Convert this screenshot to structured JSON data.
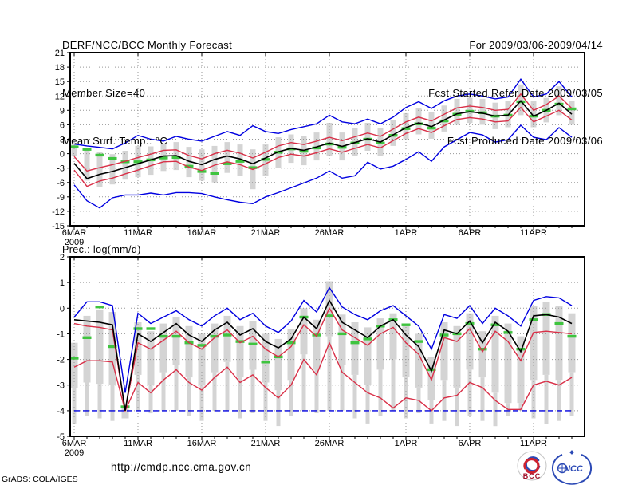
{
  "header": {
    "title": "DERF/NCC/BCC Monthly Forecast",
    "member_size": "Member Size=40",
    "temp_label": "Mean Surf. Temp.: °C",
    "for_range": "For 2009/03/06-2009/04/14",
    "refer_date": "Fcst Started Refer Date 2009/03/05",
    "produced_date": "Fcst Produced Date 2009/03/06"
  },
  "footer": {
    "url": "http://cmdp.ncc.cma.gov.cn",
    "grads_credit": "GrADS: COLA/IGES",
    "logo_bcc_label": "BCC",
    "logo_ncc_label": "NCC"
  },
  "colors": {
    "line_blue": "#0000e0",
    "line_red": "#d93048",
    "line_black": "#000000",
    "obs_green": "#3fc43f",
    "spread_gray": "#d4d4d4",
    "grid_gray": "#979797",
    "logo_red": "#cc2230",
    "logo_blue": "#2b49b5"
  },
  "chart_data": [
    {
      "id": "temp",
      "type": "line",
      "title": "Mean Surf. Temp.: °C",
      "x_range_dates": "2009/03/06 - 2009/04/14",
      "n_days": 40,
      "x_tick_labels": [
        "6MAR",
        "11MAR",
        "16MAR",
        "21MAR",
        "26MAR",
        "1APR",
        "6APR",
        "11APR"
      ],
      "x_tick_days": [
        0,
        5,
        10,
        15,
        20,
        26,
        31,
        36
      ],
      "x_first_sub_label": "2009",
      "ylim": [
        -15,
        21
      ],
      "ytick_values": [
        21,
        18,
        15,
        12,
        9,
        6,
        3,
        0,
        -3,
        -6,
        -9,
        -12,
        -15
      ],
      "ytick_labels": [
        "21",
        "18",
        "15",
        "12",
        "9",
        "6",
        "3",
        "0",
        "-3",
        "-6",
        "-9",
        "-12",
        "-15"
      ],
      "grid": true,
      "series": [
        {
          "name": "ensemble-max",
          "color_key": "line_blue",
          "style": "solid",
          "values": [
            2.0,
            1.6,
            1.3,
            1.0,
            2.2,
            3.8,
            3.0,
            2.6,
            3.6,
            3.0,
            2.6,
            3.6,
            4.6,
            3.8,
            5.8,
            4.6,
            4.2,
            5.0,
            5.6,
            6.2,
            8.0,
            6.6,
            6.2,
            7.2,
            6.2,
            7.6,
            9.6,
            10.8,
            9.4,
            11.0,
            12.0,
            12.4,
            12.0,
            11.4,
            11.8,
            15.5,
            11.8,
            12.4,
            15.0,
            11.8
          ]
        },
        {
          "name": "upper-quartile",
          "color_key": "line_red",
          "style": "solid",
          "values": [
            -0.6,
            -3.6,
            -2.9,
            -2.3,
            -1.6,
            -0.8,
            -0.1,
            0.7,
            0.8,
            -0.4,
            -1.1,
            0.0,
            0.7,
            0.1,
            -0.9,
            0.3,
            1.6,
            2.3,
            1.9,
            2.6,
            3.4,
            2.7,
            3.5,
            4.3,
            3.6,
            5.1,
            6.6,
            7.6,
            6.8,
            8.2,
            9.5,
            9.9,
            9.6,
            9.0,
            9.2,
            12.4,
            9.0,
            10.2,
            12.0,
            9.4
          ]
        },
        {
          "name": "lower-quartile",
          "color_key": "line_red",
          "style": "solid",
          "values": [
            -3.4,
            -6.8,
            -5.7,
            -5.1,
            -4.2,
            -3.4,
            -2.5,
            -1.7,
            -1.6,
            -2.8,
            -3.5,
            -2.4,
            -1.7,
            -2.3,
            -3.3,
            -2.1,
            -0.8,
            -0.1,
            -0.5,
            0.2,
            1.0,
            0.3,
            1.1,
            1.9,
            1.2,
            2.7,
            4.2,
            5.2,
            4.4,
            5.8,
            7.1,
            7.5,
            7.2,
            6.6,
            6.8,
            9.6,
            6.6,
            7.8,
            9.0,
            7.0
          ]
        },
        {
          "name": "ensemble-min",
          "color_key": "line_blue",
          "style": "solid",
          "values": [
            -6.5,
            -9.8,
            -11.3,
            -9.2,
            -8.6,
            -8.6,
            -8.2,
            -8.6,
            -8.1,
            -8.1,
            -8.3,
            -9.0,
            -9.6,
            -10.1,
            -10.4,
            -9.0,
            -8.1,
            -7.1,
            -6.1,
            -5.1,
            -3.6,
            -5.1,
            -4.6,
            -1.8,
            -3.2,
            -2.6,
            -1.2,
            0.4,
            -1.6,
            1.4,
            2.9,
            4.4,
            3.9,
            2.4,
            2.9,
            5.9,
            3.4,
            2.9,
            5.4,
            3.4
          ]
        },
        {
          "name": "ensemble-mean",
          "color_key": "line_black",
          "style": "solid",
          "values": [
            -2.0,
            -5.2,
            -4.3,
            -3.7,
            -2.9,
            -2.1,
            -1.3,
            -0.5,
            -0.4,
            -1.6,
            -2.3,
            -1.2,
            -0.5,
            -1.1,
            -2.1,
            -0.9,
            0.4,
            1.1,
            0.7,
            1.4,
            2.2,
            1.5,
            2.3,
            3.1,
            2.4,
            3.9,
            5.4,
            6.4,
            5.6,
            7.0,
            8.3,
            8.7,
            8.4,
            7.8,
            8.0,
            11.0,
            7.8,
            9.0,
            10.5,
            8.2
          ]
        }
      ],
      "observation": {
        "name": "observation-dashes",
        "color_key": "obs_green",
        "values": [
          1.4,
          0.9,
          -0.3,
          -1.0,
          -1.7,
          -1.7,
          -1.3,
          -0.9,
          -0.8,
          -2.6,
          -3.7,
          -4.1,
          -2.1,
          -1.6,
          -2.9,
          -1.2,
          0.3,
          1.0,
          0.5,
          1.2,
          2.0,
          1.3,
          2.2,
          3.0,
          2.2,
          3.8,
          5.2,
          6.2,
          5.3,
          6.8,
          8.2,
          8.8,
          8.5,
          7.8,
          8.0,
          10.8,
          7.8,
          9.0,
          10.3,
          9.3
        ]
      },
      "spread_bars": {
        "box_top": [
          2.2,
          0.9,
          0.4,
          -0.1,
          0.6,
          1.6,
          1.5,
          2.0,
          2.4,
          1.4,
          0.9,
          1.6,
          2.4,
          1.9,
          0.9,
          1.9,
          3.4,
          4.0,
          3.6,
          4.4,
          6.4,
          4.4,
          5.4,
          6.4,
          5.4,
          7.0,
          8.4,
          9.4,
          8.6,
          10.0,
          11.4,
          11.6,
          11.4,
          10.6,
          11.0,
          14.4,
          11.0,
          11.6,
          14.0,
          11.0
        ],
        "box_bottom": [
          -0.4,
          -5.6,
          -7.0,
          -6.4,
          -5.4,
          -4.9,
          -4.4,
          -3.6,
          -3.4,
          -4.9,
          -5.6,
          -6.0,
          -4.0,
          -4.6,
          -7.4,
          -4.6,
          -2.9,
          -1.9,
          -2.4,
          -1.4,
          -0.4,
          -1.4,
          -0.4,
          0.6,
          -0.4,
          1.6,
          3.0,
          4.0,
          3.1,
          4.6,
          6.0,
          6.4,
          6.0,
          5.1,
          5.5,
          8.0,
          5.5,
          6.5,
          8.0,
          6.0
        ],
        "stem_bottom": null
      }
    },
    {
      "id": "prec",
      "type": "line",
      "title": "Prec.: log(mm/d)",
      "x_range_dates": "2009/03/06 - 2009/04/14",
      "n_days": 40,
      "x_tick_labels": [
        "6MAR",
        "11MAR",
        "16MAR",
        "21MAR",
        "26MAR",
        "1APR",
        "6APR",
        "11APR"
      ],
      "x_tick_days": [
        0,
        5,
        10,
        15,
        20,
        26,
        31,
        36
      ],
      "x_first_sub_label": "2009",
      "ylim": [
        -5,
        2
      ],
      "ytick_values": [
        2,
        1,
        0,
        -1,
        -2,
        -3,
        -4,
        -5
      ],
      "ytick_labels": [
        "2",
        "1",
        "0",
        "-1",
        "-2",
        "-3",
        "-4",
        "-5"
      ],
      "grid": true,
      "series": [
        {
          "name": "ensemble-max",
          "color_key": "line_blue",
          "style": "solid",
          "values": [
            -0.35,
            0.25,
            0.25,
            0.1,
            -3.3,
            -0.2,
            -0.6,
            -0.35,
            -0.1,
            -0.45,
            -0.7,
            -0.3,
            0.0,
            -0.45,
            -0.2,
            -0.7,
            -0.95,
            -0.5,
            0.3,
            -0.15,
            0.8,
            0.05,
            -0.25,
            -0.45,
            -0.1,
            0.1,
            -0.3,
            -0.7,
            -1.6,
            -0.25,
            -0.4,
            0.1,
            -0.6,
            0.0,
            -0.3,
            -0.7,
            0.3,
            0.45,
            0.4,
            0.1
          ]
        },
        {
          "name": "upper-quartile",
          "color_key": "line_red",
          "style": "solid",
          "values": [
            -0.6,
            -0.7,
            -0.75,
            -0.85,
            -4.0,
            -1.35,
            -1.6,
            -1.25,
            -0.9,
            -1.35,
            -1.6,
            -1.15,
            -0.85,
            -1.35,
            -1.1,
            -1.6,
            -1.9,
            -1.5,
            -0.65,
            -1.1,
            0.0,
            -0.85,
            -1.15,
            -1.45,
            -1.0,
            -0.75,
            -1.35,
            -1.8,
            -2.8,
            -1.15,
            -1.3,
            -0.8,
            -1.7,
            -0.9,
            -1.3,
            -2.05,
            -0.95,
            -0.9,
            -0.95,
            -1.0
          ]
        },
        {
          "name": "lower-quartile",
          "color_key": "line_red",
          "style": "solid",
          "values": [
            -2.3,
            -2.05,
            -2.05,
            -2.1,
            -4.0,
            -2.9,
            -3.3,
            -2.8,
            -2.4,
            -2.9,
            -3.2,
            -2.7,
            -2.3,
            -2.9,
            -2.6,
            -3.1,
            -3.5,
            -3.0,
            -2.0,
            -2.6,
            -1.35,
            -2.5,
            -2.9,
            -3.3,
            -3.5,
            -3.9,
            -3.5,
            -3.6,
            -4.0,
            -3.5,
            -3.4,
            -2.9,
            -3.1,
            -3.6,
            -3.95,
            -3.95,
            -3.0,
            -2.85,
            -3.0,
            -2.7
          ]
        },
        {
          "name": "ensemble-min",
          "color_key": "line_blue",
          "style": "dashed",
          "values": [
            -4.0,
            -4.0,
            -4.0,
            -4.0,
            -4.0,
            -4.0,
            -4.0,
            -4.0,
            -4.0,
            -4.0,
            -4.0,
            -4.0,
            -4.0,
            -4.0,
            -4.0,
            -4.0,
            -4.0,
            -4.0,
            -4.0,
            -4.0,
            -4.0,
            -4.0,
            -4.0,
            -4.0,
            -4.0,
            -4.0,
            -4.0,
            -4.0,
            -4.0,
            -4.0,
            -4.0,
            -4.0,
            -4.0,
            -4.0,
            -4.0,
            -4.0,
            -4.0,
            -4.0,
            -4.0,
            -4.0
          ]
        },
        {
          "name": "ensemble-mean",
          "color_key": "line_black",
          "style": "solid",
          "values": [
            -0.45,
            -0.5,
            -0.55,
            -0.65,
            -4.0,
            -1.0,
            -1.3,
            -0.95,
            -0.6,
            -1.05,
            -1.3,
            -0.85,
            -0.55,
            -1.05,
            -0.8,
            -1.3,
            -1.55,
            -1.2,
            -0.35,
            -0.8,
            0.3,
            -0.55,
            -0.85,
            -1.15,
            -0.7,
            -0.45,
            -1.05,
            -1.5,
            -2.45,
            -0.85,
            -1.0,
            -0.5,
            -1.35,
            -0.55,
            -0.9,
            -1.7,
            -0.3,
            -0.25,
            -0.35,
            -0.6
          ]
        }
      ],
      "observation": {
        "name": "observation-dashes",
        "color_key": "obs_green",
        "values": [
          -1.95,
          -1.15,
          0.05,
          -1.5,
          -3.85,
          -0.8,
          -0.8,
          -1.1,
          -1.1,
          -1.35,
          -1.45,
          -1.1,
          -1.05,
          -1.3,
          -1.4,
          -2.1,
          -1.9,
          -1.35,
          -0.35,
          -1.05,
          -0.3,
          -1.0,
          -1.35,
          -1.2,
          -0.7,
          -0.45,
          -0.65,
          -1.3,
          -2.4,
          -1.05,
          -1.0,
          -0.6,
          -1.6,
          -0.65,
          -0.95,
          -1.6,
          -0.45,
          -0.25,
          -0.6,
          -1.1
        ]
      },
      "spread_bars": {
        "box_top": [
          -1.35,
          -0.3,
          -0.05,
          -0.15,
          -3.8,
          -0.55,
          -0.9,
          -0.6,
          -0.35,
          -0.7,
          -1.0,
          -0.6,
          -0.3,
          -0.7,
          -0.5,
          -1.0,
          -1.2,
          -0.8,
          0.0,
          -0.45,
          1.05,
          -0.25,
          -0.55,
          -0.75,
          -0.4,
          -0.2,
          -0.6,
          -1.0,
          -1.9,
          -0.55,
          -0.7,
          -0.2,
          -0.9,
          -0.3,
          -0.6,
          -1.1,
          0.1,
          0.25,
          0.1,
          -0.2
        ],
        "box_bottom": [
          -3.1,
          -2.9,
          -2.95,
          -3.0,
          -4.3,
          -2.6,
          -3.0,
          -2.5,
          -2.2,
          -2.7,
          -3.0,
          -2.5,
          -2.1,
          -2.7,
          -2.4,
          -2.9,
          -3.2,
          -2.8,
          -1.8,
          -2.4,
          -1.1,
          -2.2,
          -2.6,
          -3.0,
          -2.4,
          -2.0,
          -2.7,
          -3.1,
          -3.6,
          -2.8,
          -3.1,
          -2.4,
          -2.7,
          -3.3,
          -3.7,
          -3.7,
          -2.8,
          -2.6,
          -2.8,
          -2.5
        ],
        "stem_bottom": [
          -4.5,
          -4.2,
          -4.3,
          -4.4,
          -4.3,
          -4.0,
          -4.1,
          -4.0,
          -4.0,
          -4.2,
          -4.4,
          -4.0,
          -4.0,
          -4.3,
          -4.1,
          -4.4,
          -4.6,
          -4.2,
          -4.0,
          -4.1,
          -4.0,
          -4.0,
          -4.3,
          -4.5,
          -4.2,
          -4.0,
          -4.3,
          -4.1,
          -4.5,
          -4.4,
          -4.6,
          -4.2,
          -4.4,
          -4.6,
          -4.2,
          -4.0,
          -4.3,
          -4.5,
          -4.4,
          -4.2
        ]
      }
    }
  ]
}
